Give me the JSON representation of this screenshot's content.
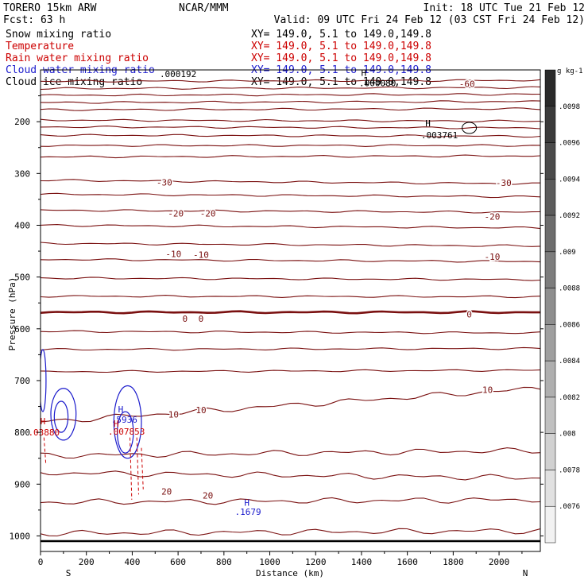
{
  "header": {
    "model": "TORERO  15km ARW",
    "org": "NCAR/MMM",
    "init": "Init: 18 UTC Tue 21 Feb 12",
    "fcst": "Fcst:   63 h",
    "valid": "Valid: 09 UTC Fri 24 Feb 12 (03 CST Fri 24 Feb 12)"
  },
  "fields": [
    {
      "name": "Snow mixing ratio",
      "coords": "XY= 149.0,  5.1 to 149.0,149.8",
      "color": "#000000"
    },
    {
      "name": "Temperature",
      "coords": "XY= 149.0,  5.1 to 149.0,149.8",
      "color": "#cc0000"
    },
    {
      "name": "Rain water mixing ratio",
      "coords": "XY= 149.0,  5.1 to 149.0,149.8",
      "color": "#cc0000"
    },
    {
      "name": "Cloud water mixing ratio",
      "coords": "XY= 149.0,  5.1 to 149.0,149.8",
      "color": "#1a1acc"
    },
    {
      "name": "Cloud ice mixing ratio",
      "coords": "XY= 149.0,  5.1 to 149.0,149.8",
      "color": "#000000"
    }
  ],
  "chart_data": {
    "type": "contour cross-section",
    "xlabel": "Distance (km)",
    "ylabel": "Pressure (hPa)",
    "xlim": [
      0,
      2180
    ],
    "ylim": [
      1030,
      100
    ],
    "x_ticks": [
      0,
      200,
      400,
      600,
      800,
      1000,
      1200,
      1400,
      1600,
      1800,
      2000
    ],
    "y_ticks": [
      200,
      300,
      400,
      500,
      600,
      700,
      800,
      900,
      1000
    ],
    "left_end_label": "S",
    "right_end_label": "N",
    "temperature_isotherms_C": [
      {
        "level": -60,
        "p_start": 122,
        "p_end": 120
      },
      {
        "level": null,
        "p_start": 136,
        "p_end": 134
      },
      {
        "level": null,
        "p_start": 149,
        "p_end": 147
      },
      {
        "level": null,
        "p_start": 163,
        "p_end": 161
      },
      {
        "level": null,
        "p_start": 177,
        "p_end": 175
      },
      {
        "level": null,
        "p_start": 197,
        "p_end": 199
      },
      {
        "level": null,
        "p_start": 210,
        "p_end": 212
      },
      {
        "level": null,
        "p_start": 226,
        "p_end": 228
      },
      {
        "level": null,
        "p_start": 246,
        "p_end": 246
      },
      {
        "level": null,
        "p_start": 268,
        "p_end": 266
      },
      {
        "level": -30,
        "p_start": 313,
        "p_end": 320
      },
      {
        "level": null,
        "p_start": 340,
        "p_end": 345
      },
      {
        "level": -20,
        "p_start": 371,
        "p_end": 375
      },
      {
        "level": null,
        "p_start": 400,
        "p_end": 405
      },
      {
        "level": -10,
        "p_start": 435,
        "p_end": 440
      },
      {
        "level": null,
        "p_start": 466,
        "p_end": 470
      },
      {
        "level": null,
        "p_start": 502,
        "p_end": 505
      },
      {
        "level": null,
        "p_start": 537,
        "p_end": 538
      },
      {
        "level": 0,
        "p_start": 568,
        "p_end": 568
      },
      {
        "level": null,
        "p_start": 605,
        "p_end": 608
      },
      {
        "level": null,
        "p_start": 640,
        "p_end": 638
      },
      {
        "level": null,
        "p_start": 683,
        "p_end": 680
      },
      {
        "level": 10,
        "p_start": 780,
        "p_end": 715
      },
      {
        "level": null,
        "p_start": 845,
        "p_end": 835
      },
      {
        "level": null,
        "p_start": 878,
        "p_end": 888
      },
      {
        "level": 20,
        "p_start": 935,
        "p_end": 930
      },
      {
        "level": null,
        "p_start": 995,
        "p_end": 990
      }
    ],
    "contour_labels": [
      {
        "text": "-60",
        "x": 1860,
        "p": 127
      },
      {
        "text": "-30",
        "x": 540,
        "p": 317
      },
      {
        "text": "-30",
        "x": 2020,
        "p": 318
      },
      {
        "text": "-20",
        "x": 590,
        "p": 377
      },
      {
        "text": "-20",
        "x": 730,
        "p": 377
      },
      {
        "text": "-20",
        "x": 1970,
        "p": 383
      },
      {
        "text": "-10",
        "x": 580,
        "p": 455
      },
      {
        "text": "-10",
        "x": 700,
        "p": 457
      },
      {
        "text": "-10",
        "x": 1970,
        "p": 461
      },
      {
        "text": "0",
        "x": 630,
        "p": 580
      },
      {
        "text": "0",
        "x": 700,
        "p": 580
      },
      {
        "text": "0",
        "x": 1870,
        "p": 572
      },
      {
        "text": "10",
        "x": 580,
        "p": 765
      },
      {
        "text": "10",
        "x": 700,
        "p": 757
      },
      {
        "text": "10",
        "x": 1950,
        "p": 718
      },
      {
        "text": "20",
        "x": 550,
        "p": 914
      },
      {
        "text": "20",
        "x": 730,
        "p": 922
      }
    ],
    "extrema_labels": [
      {
        "text": ".000192",
        "x": 600,
        "p": 108,
        "color": "#000000"
      },
      {
        "text": "H",
        "x": 1410,
        "p": 105,
        "color": "#000000"
      },
      {
        "text": ".000080",
        "x": 1470,
        "p": 125,
        "color": "#000000"
      },
      {
        "text": "H",
        "x": 1690,
        "p": 203,
        "color": "#000000"
      },
      {
        "text": ".003761",
        "x": 1740,
        "p": 226,
        "color": "#000000"
      },
      {
        "text": "H",
        "x": 10,
        "p": 778,
        "color": "#cc0000"
      },
      {
        "text": ".03880",
        "x": 15,
        "p": 800,
        "color": "#cc0000"
      },
      {
        "text": "H",
        "x": 350,
        "p": 755,
        "color": "#1a1acc"
      },
      {
        "text": ".5936",
        "x": 365,
        "p": 775,
        "color": "#1a1acc"
      },
      {
        "text": "H",
        "x": 330,
        "p": 783,
        "color": "#cc0000"
      },
      {
        "text": ".007853",
        "x": 375,
        "p": 798,
        "color": "#cc0000"
      },
      {
        "text": "H",
        "x": 900,
        "p": 936,
        "color": "#1a1acc"
      },
      {
        "text": ".1679",
        "x": 905,
        "p": 953,
        "color": "#1a1acc"
      }
    ],
    "colorbar": {
      "units": "g kg-1",
      "labels": [
        ".0098",
        ".0096",
        ".0094",
        ".0092",
        ".009",
        ".0088",
        ".0086",
        ".0084",
        ".0082",
        ".008",
        ".0078",
        ".0076"
      ],
      "dark_color": "#2a2a2a",
      "light_color": "#f2f2f2"
    },
    "grid": false,
    "ground_pressure_hPa": 1010
  },
  "colors": {
    "temperature": "#7a1010",
    "freezing_line": "#7a1010",
    "rain": "#cc0000",
    "cloud_water": "#1a1acc",
    "axes": "#000000"
  }
}
